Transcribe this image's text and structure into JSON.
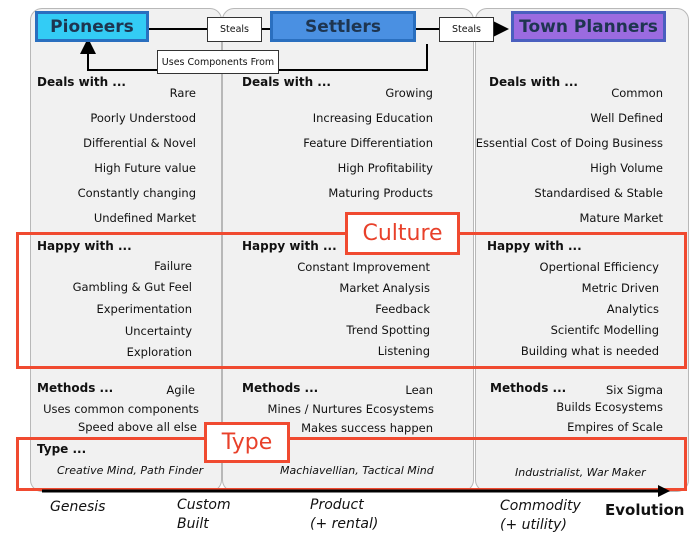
{
  "roles": [
    {
      "name": "Pioneers",
      "color": "#33ccf5"
    },
    {
      "name": "Settlers",
      "color": "#4a90e2"
    },
    {
      "name": "Town Planners",
      "color": "#9b6be0"
    }
  ],
  "links": {
    "steals1": "Steals",
    "steals2": "Steals",
    "uses": "Uses Components From"
  },
  "columns": [
    {
      "deals_heading": "Deals with ...",
      "deals": [
        "Rare",
        "Poorly Understood",
        "Differential & Novel",
        "High Future value",
        "Constantly changing",
        "Undefined Market"
      ],
      "happy_heading": "Happy with ...",
      "happy": [
        "Failure",
        "Gambling & Gut Feel",
        "Experimentation",
        "Uncertainty",
        "Exploration"
      ],
      "methods_heading": "Methods ...",
      "methods": [
        "Agile",
        "Uses common components",
        "Speed above all else"
      ],
      "type_heading": "Type ...",
      "type": "Creative Mind, Path Finder"
    },
    {
      "deals_heading": "Deals with ...",
      "deals": [
        "Growing",
        "Increasing Education",
        "Feature Differentiation",
        "High Profitability",
        "Maturing Products"
      ],
      "happy_heading": "Happy with ...",
      "happy": [
        "Constant Improvement",
        "Market Analysis",
        "Feedback",
        "Trend Spotting",
        "Listening"
      ],
      "methods_heading": "Methods ...",
      "methods": [
        "Lean",
        "Mines / Nurtures Ecosystems",
        "Makes success happen"
      ],
      "type": "Machiavellian, Tactical Mind"
    },
    {
      "deals_heading": "Deals with ...",
      "deals": [
        "Common",
        "Well Defined",
        "Essential Cost of Doing Business",
        "High Volume",
        "Standardised & Stable",
        "Mature Market"
      ],
      "happy_heading": "Happy with ...",
      "happy": [
        "Opertional Efficiency",
        "Metric Driven",
        "Analytics",
        "Scientifc Modelling",
        "Building what is needed"
      ],
      "methods_heading": "Methods ...",
      "methods": [
        "Six Sigma",
        "Builds Ecosystems",
        "Empires of Scale"
      ],
      "type": "Industrialist, War Maker"
    }
  ],
  "highlights": {
    "culture": "Culture",
    "type": "Type"
  },
  "axis": {
    "genesis": "Genesis",
    "custom1": "Custom",
    "custom2": "Built",
    "product1": "Product",
    "product2": "(+ rental)",
    "commodity1": "Commodity",
    "commodity2": "(+ utility)",
    "evolution": "Evolution"
  }
}
